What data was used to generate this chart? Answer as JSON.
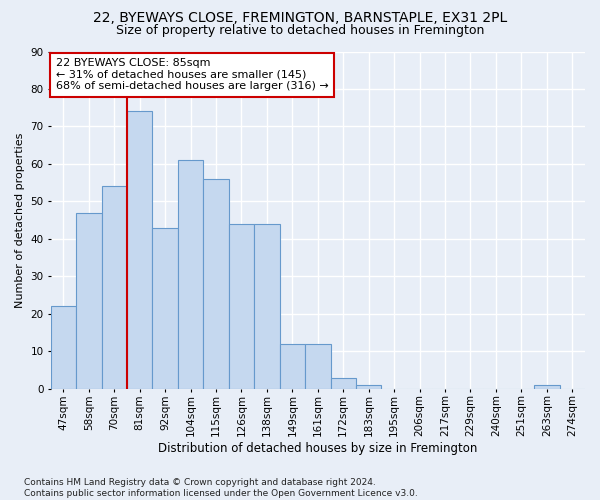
{
  "title": "22, BYEWAYS CLOSE, FREMINGTON, BARNSTAPLE, EX31 2PL",
  "subtitle": "Size of property relative to detached houses in Fremington",
  "xlabel": "Distribution of detached houses by size in Fremington",
  "ylabel": "Number of detached properties",
  "categories": [
    "47sqm",
    "58sqm",
    "70sqm",
    "81sqm",
    "92sqm",
    "104sqm",
    "115sqm",
    "126sqm",
    "138sqm",
    "149sqm",
    "161sqm",
    "172sqm",
    "183sqm",
    "195sqm",
    "206sqm",
    "217sqm",
    "229sqm",
    "240sqm",
    "251sqm",
    "263sqm",
    "274sqm"
  ],
  "values": [
    22,
    47,
    54,
    74,
    43,
    61,
    56,
    44,
    44,
    12,
    12,
    3,
    1,
    0,
    0,
    0,
    0,
    0,
    0,
    1,
    0
  ],
  "bar_color": "#c5d8ef",
  "bar_edge_color": "#6699cc",
  "background_color": "#e8eef7",
  "grid_color": "#ffffff",
  "annotation_box_text": "22 BYEWAYS CLOSE: 85sqm\n← 31% of detached houses are smaller (145)\n68% of semi-detached houses are larger (316) →",
  "vline_x_index": 3,
  "vline_color": "#cc0000",
  "annotation_box_color": "#ffffff",
  "annotation_box_edge_color": "#cc0000",
  "ylim": [
    0,
    90
  ],
  "yticks": [
    0,
    10,
    20,
    30,
    40,
    50,
    60,
    70,
    80,
    90
  ],
  "footnote": "Contains HM Land Registry data © Crown copyright and database right 2024.\nContains public sector information licensed under the Open Government Licence v3.0.",
  "title_fontsize": 10,
  "subtitle_fontsize": 9,
  "xlabel_fontsize": 8.5,
  "ylabel_fontsize": 8,
  "tick_fontsize": 7.5,
  "annotation_fontsize": 8,
  "footnote_fontsize": 6.5
}
